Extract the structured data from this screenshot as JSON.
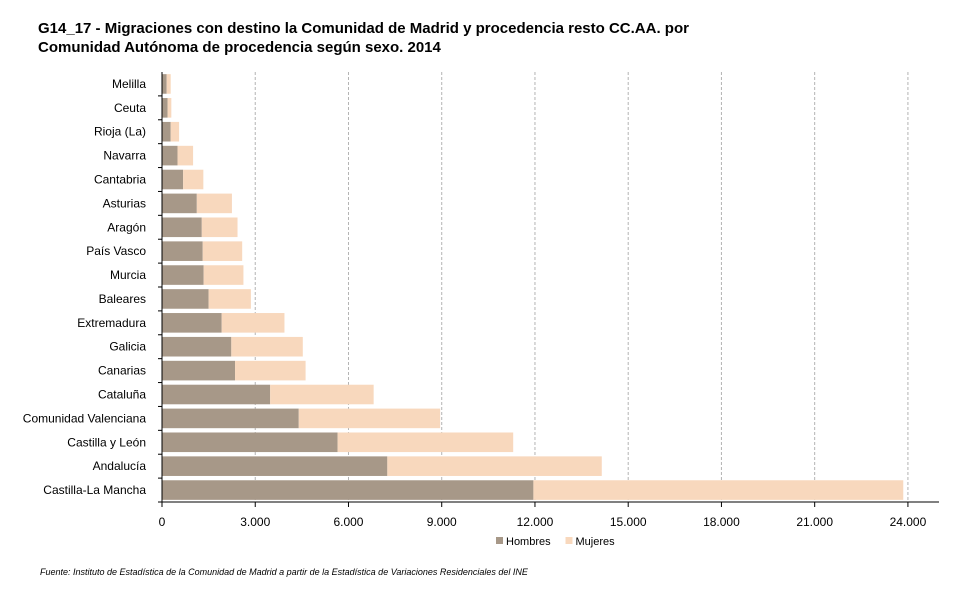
{
  "chart_data": {
    "type": "bar",
    "orientation": "horizontal",
    "stacked": true,
    "title_lines": [
      "G14_17 - Migraciones con destino la Comunidad de Madrid y procedencia resto CC.AA. por",
      "Comunidad Autónoma de procedencia según sexo. 2014"
    ],
    "categories": [
      "Melilla",
      "Ceuta",
      "Rioja (La)",
      "Navarra",
      "Cantabria",
      "Asturias",
      "Aragón",
      "País Vasco",
      "Murcia",
      "Baleares",
      "Extremadura",
      "Galicia",
      "Canarias",
      "Cataluña",
      "Comunidad Valenciana",
      "Castilla y León",
      "Andalucía",
      "Castilla-La Mancha"
    ],
    "series": [
      {
        "name": "Hombres",
        "color": "#a79888",
        "values": [
          150,
          180,
          280,
          500,
          680,
          1120,
          1280,
          1310,
          1340,
          1500,
          1920,
          2230,
          2350,
          3480,
          4400,
          5650,
          7250,
          11950
        ]
      },
      {
        "name": "Mujeres",
        "color": "#f8d8bd",
        "values": [
          130,
          120,
          270,
          500,
          650,
          1130,
          1150,
          1270,
          1280,
          1360,
          2020,
          2300,
          2270,
          3330,
          4550,
          5650,
          6900,
          11900
        ]
      }
    ],
    "x_ticks": [
      "0",
      "3.000",
      "6.000",
      "9.000",
      "12.000",
      "15.000",
      "18.000",
      "21.000",
      "24.000"
    ],
    "xlim": [
      0,
      25000
    ],
    "x_grid": true,
    "legend_position": "bottom",
    "source": "Fuente: Instituto de Estadística de la  Comunidad de Madrid a partir de la  Estadística de Variaciones Residenciales del  INE"
  }
}
